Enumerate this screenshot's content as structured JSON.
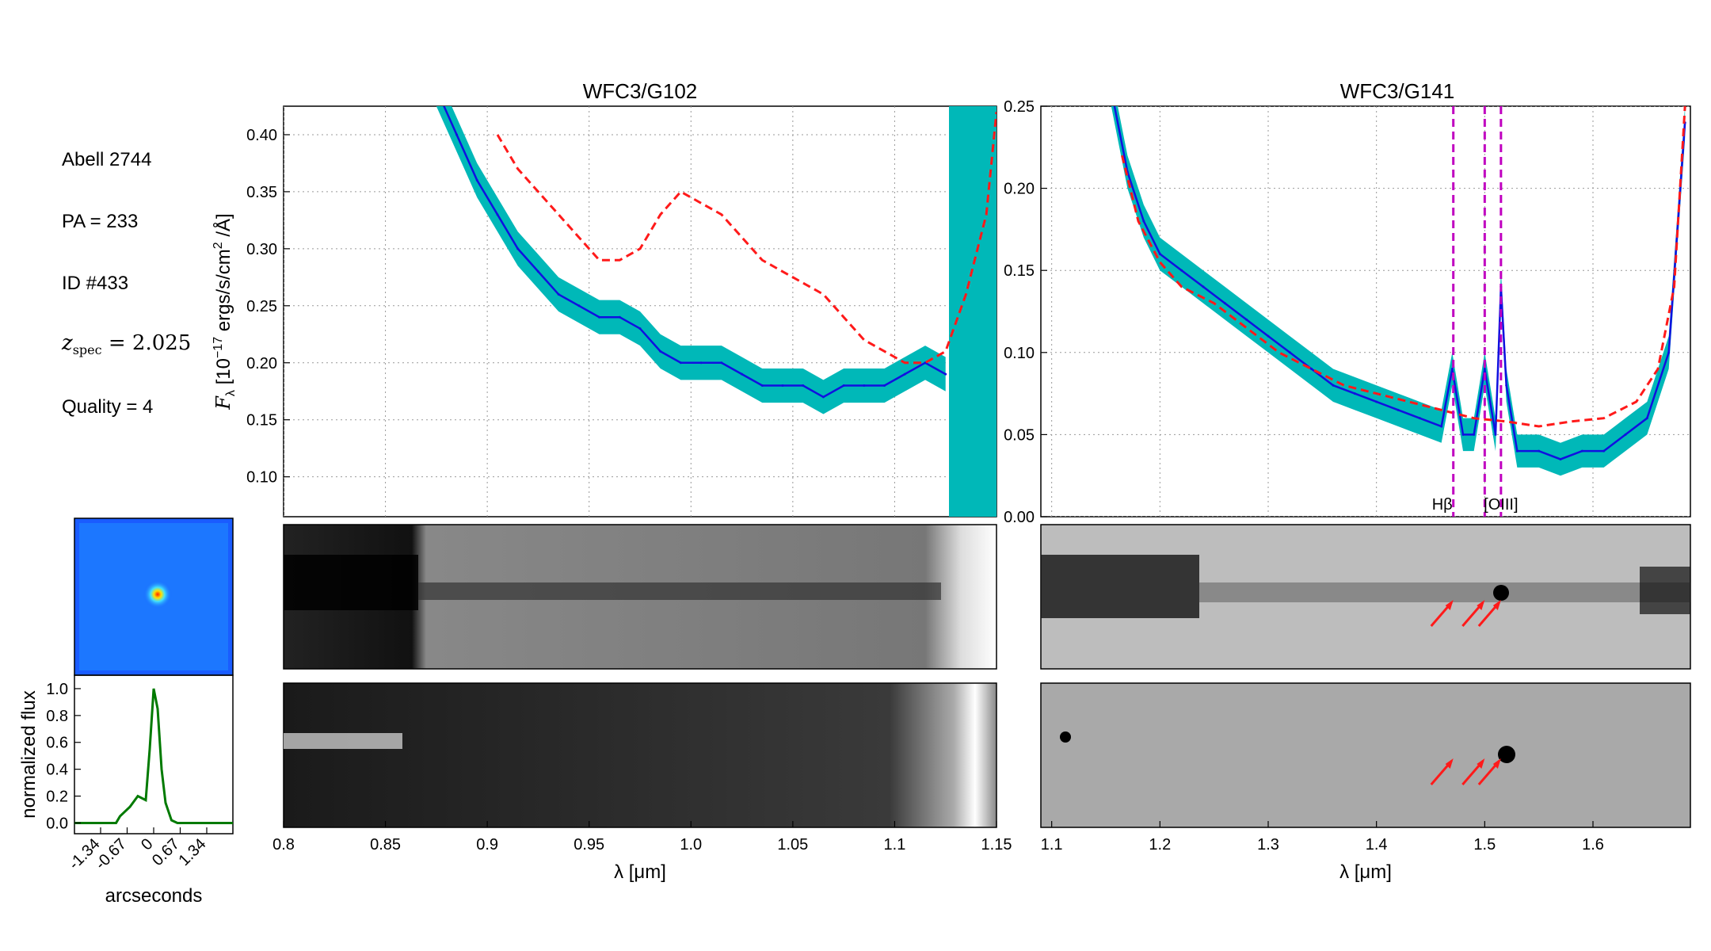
{
  "info": {
    "field": "Abell 2744",
    "pa": "PA = 233",
    "id": "ID #433",
    "z_label": "z",
    "z_sub": "spec",
    "z_value": " = 2.025",
    "quality": "Quality = 4"
  },
  "chart_data": [
    {
      "type": "line",
      "title": "WFC3/G102",
      "xlabel": "λ [μm]",
      "ylabel": "F_λ [10^-17 ergs/s/cm^2 /Å]",
      "xlim": [
        0.8,
        1.15
      ],
      "ylim": [
        0.065,
        0.425
      ],
      "xticks": [
        "0.8",
        "0.85",
        "0.9",
        "0.95",
        "1.0",
        "1.05",
        "1.1",
        "1.15"
      ],
      "yticks": [
        "0.10",
        "0.15",
        "0.20",
        "0.25",
        "0.30",
        "0.35",
        "0.40"
      ],
      "grid": true,
      "series": [
        {
          "kind": "observed flux",
          "color": "#1010e0",
          "x": [
            0.875,
            0.885,
            0.895,
            0.905,
            0.915,
            0.925,
            0.935,
            0.945,
            0.955,
            0.965,
            0.975,
            0.985,
            0.995,
            1.005,
            1.015,
            1.025,
            1.035,
            1.045,
            1.055,
            1.065,
            1.075,
            1.085,
            1.095,
            1.105,
            1.115,
            1.125
          ],
          "y": [
            0.44,
            0.4,
            0.36,
            0.33,
            0.3,
            0.28,
            0.26,
            0.25,
            0.24,
            0.24,
            0.23,
            0.21,
            0.2,
            0.2,
            0.2,
            0.19,
            0.18,
            0.18,
            0.18,
            0.17,
            0.18,
            0.18,
            0.18,
            0.19,
            0.2,
            0.19
          ]
        },
        {
          "kind": "error band",
          "color": "#00b8b8",
          "halfwidth": 0.015
        },
        {
          "kind": "model template",
          "color": "#ff1a1a",
          "style": "dashed",
          "x": [
            0.905,
            0.915,
            0.925,
            0.935,
            0.945,
            0.955,
            0.965,
            0.975,
            0.985,
            0.995,
            1.005,
            1.015,
            1.025,
            1.035,
            1.045,
            1.055,
            1.065,
            1.075,
            1.085,
            1.095,
            1.105,
            1.115,
            1.125,
            1.135,
            1.145,
            1.15
          ],
          "y": [
            0.4,
            0.37,
            0.35,
            0.33,
            0.31,
            0.29,
            0.29,
            0.3,
            0.33,
            0.35,
            0.34,
            0.33,
            0.31,
            0.29,
            0.28,
            0.27,
            0.26,
            0.24,
            0.22,
            0.21,
            0.2,
            0.2,
            0.21,
            0.26,
            0.33,
            0.42
          ]
        }
      ]
    },
    {
      "type": "line",
      "title": "WFC3/G141",
      "xlabel": "λ [μm]",
      "xlim": [
        1.09,
        1.69
      ],
      "ylim": [
        0.0,
        0.25
      ],
      "xticks": [
        "1.1",
        "1.2",
        "1.3",
        "1.4",
        "1.5",
        "1.6"
      ],
      "yticks": [
        "0.00",
        "0.05",
        "0.10",
        "0.15",
        "0.20",
        "0.25"
      ],
      "grid": true,
      "series": [
        {
          "kind": "observed flux",
          "color": "#1010e0",
          "x": [
            1.155,
            1.17,
            1.185,
            1.2,
            1.22,
            1.24,
            1.26,
            1.28,
            1.3,
            1.32,
            1.34,
            1.36,
            1.38,
            1.4,
            1.42,
            1.44,
            1.46,
            1.47,
            1.48,
            1.49,
            1.5,
            1.51,
            1.515,
            1.52,
            1.53,
            1.55,
            1.57,
            1.59,
            1.61,
            1.63,
            1.65,
            1.67,
            1.685
          ],
          "y": [
            0.26,
            0.21,
            0.18,
            0.16,
            0.15,
            0.14,
            0.13,
            0.12,
            0.11,
            0.1,
            0.09,
            0.08,
            0.075,
            0.07,
            0.065,
            0.06,
            0.055,
            0.09,
            0.05,
            0.05,
            0.09,
            0.05,
            0.14,
            0.08,
            0.04,
            0.04,
            0.035,
            0.04,
            0.04,
            0.05,
            0.06,
            0.1,
            0.24
          ]
        },
        {
          "kind": "error band",
          "color": "#00b8b8",
          "halfwidth": 0.01
        },
        {
          "kind": "model template",
          "color": "#ff1a1a",
          "style": "dashed",
          "x": [
            1.165,
            1.18,
            1.2,
            1.22,
            1.25,
            1.28,
            1.31,
            1.34,
            1.37,
            1.4,
            1.43,
            1.46,
            1.49,
            1.52,
            1.55,
            1.58,
            1.61,
            1.64,
            1.66,
            1.675,
            1.685
          ],
          "y": [
            0.22,
            0.18,
            0.155,
            0.14,
            0.13,
            0.115,
            0.1,
            0.09,
            0.08,
            0.075,
            0.07,
            0.065,
            0.06,
            0.058,
            0.055,
            0.058,
            0.06,
            0.07,
            0.09,
            0.14,
            0.25
          ]
        }
      ],
      "lines": [
        {
          "x": 1.471,
          "label": "Hβ"
        },
        {
          "x": 1.5,
          "label": ""
        },
        {
          "x": 1.515,
          "label": "[OIII]"
        }
      ]
    },
    {
      "type": "line",
      "title": "",
      "xlabel": "arcseconds",
      "ylabel": "normalized flux",
      "xlim": [
        -2.0,
        2.0
      ],
      "ylim": [
        -0.08,
        1.1
      ],
      "xticks": [
        "-1.34",
        "-0.67",
        "0",
        "0.67",
        "1.34"
      ],
      "yticks": [
        "0.0",
        "0.2",
        "0.4",
        "0.6",
        "0.8",
        "1.0"
      ],
      "series": [
        {
          "kind": "spatial profile",
          "color": "#007a00",
          "x": [
            -2.0,
            -0.95,
            -0.85,
            -0.6,
            -0.4,
            -0.2,
            -0.1,
            0.0,
            0.1,
            0.2,
            0.3,
            0.45,
            0.6,
            2.0
          ],
          "y": [
            0,
            0,
            0.05,
            0.12,
            0.2,
            0.17,
            0.55,
            1.0,
            0.85,
            0.4,
            0.15,
            0.02,
            0,
            0
          ]
        }
      ]
    }
  ]
}
